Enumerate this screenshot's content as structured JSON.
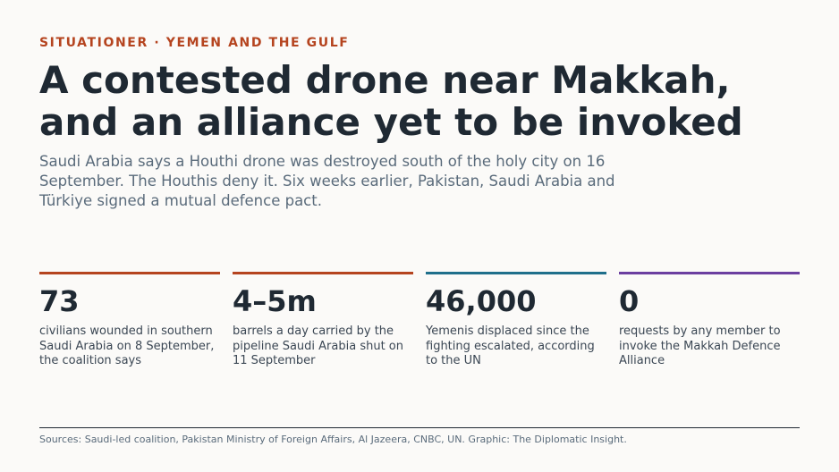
{
  "kicker": "SITUATIONER · YEMEN AND THE GULF",
  "title": "A contested drone near Makkah, and an alliance yet to be invoked",
  "subtitle": "Saudi Arabia says a Houthi drone was destroyed south of the holy city on 16 September. The Houthis deny it. Six weeks earlier, Pakistan, Saudi Arabia and Türkiye signed a mutual defence pact.",
  "stats": [
    {
      "value": "73",
      "label": "civilians wounded in southern Saudi Arabia on 8 September, the coalition says"
    },
    {
      "value": "4–5m",
      "label": "barrels a day carried by the pipeline Saudi Arabia shut on 11 September"
    },
    {
      "value": "46,000",
      "label": "Yemenis displaced since the fighting escalated, according to the UN"
    },
    {
      "value": "0",
      "label": "requests by any member to invoke the Makkah Defence Alliance"
    }
  ],
  "sources": "Sources: Saudi-led coalition, Pakistan Ministry of Foreign Affairs, Al Jazeera, CNBC, UN. Graphic: The Diplomatic Insight."
}
